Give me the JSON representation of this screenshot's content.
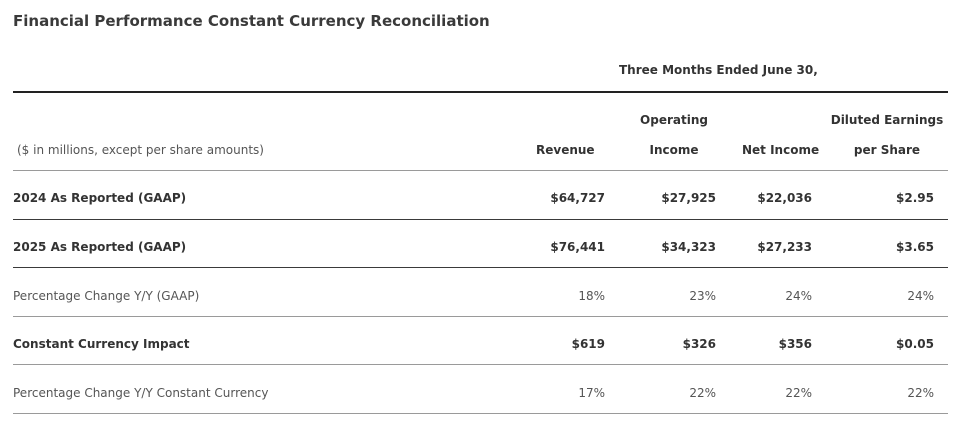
{
  "title": "Financial Performance Constant Currency Reconciliation",
  "period": "Three Months Ended June 30,",
  "header": {
    "units": "($ in millions, except per share amounts)",
    "revenue": "Revenue",
    "operating_line1": "Operating",
    "operating_line2": "Income",
    "net_income": "Net Income",
    "diluted_line1": "Diluted Earnings",
    "diluted_line2": "per Share"
  },
  "rows": [
    {
      "label": "2024 As Reported (GAAP)",
      "revenue": "$64,727",
      "operating": "$27,925",
      "net": "$22,036",
      "eps": "$2.95"
    },
    {
      "label": "2025 As Reported (GAAP)",
      "revenue": "$76,441",
      "operating": "$34,323",
      "net": "$27,233",
      "eps": "$3.65"
    },
    {
      "label": "Percentage Change Y/Y (GAAP)",
      "revenue": "18%",
      "operating": "23%",
      "net": "24%",
      "eps": "24%"
    },
    {
      "label": "Constant Currency Impact",
      "revenue": "$619",
      "operating": "$326",
      "net": "$356",
      "eps": "$0.05"
    },
    {
      "label": "Percentage Change Y/Y Constant Currency",
      "revenue": "17%",
      "operating": "22%",
      "net": "22%",
      "eps": "22%"
    }
  ]
}
